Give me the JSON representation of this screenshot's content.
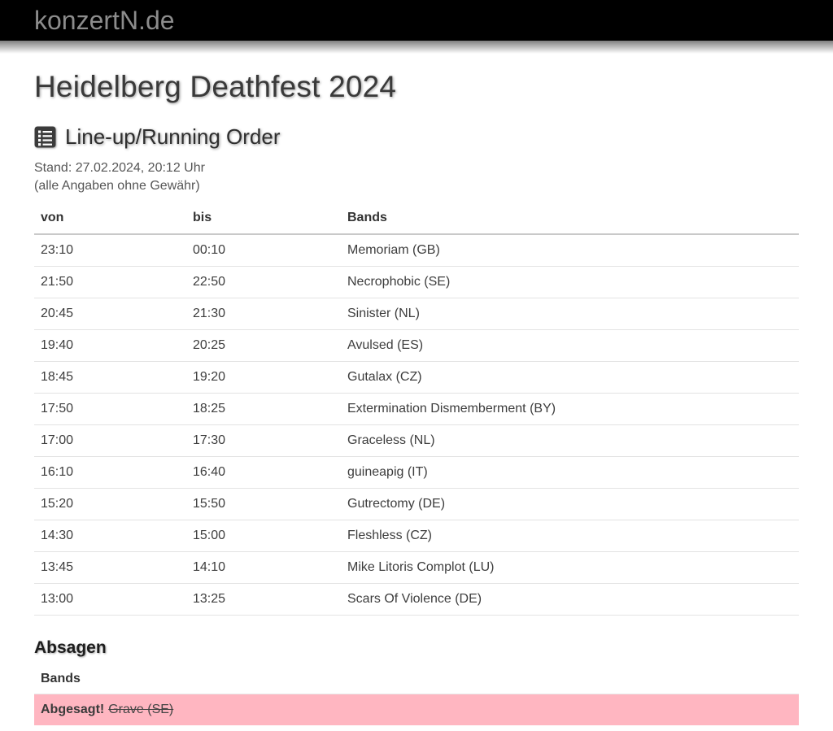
{
  "topbar": {
    "site_title": "konzertN.de"
  },
  "page": {
    "title": "Heidelberg Deathfest 2024"
  },
  "lineup": {
    "heading": "Line-up/Running Order",
    "icon": "list-icon",
    "stand_line": "Stand: 27.02.2024, 20:12 Uhr",
    "disclaimer": "(alle Angaben ohne Gewähr)",
    "columns": {
      "von": "von",
      "bis": "bis",
      "bands": "Bands"
    },
    "rows": [
      {
        "von": "23:10",
        "bis": "00:10",
        "band": "Memoriam (GB)"
      },
      {
        "von": "21:50",
        "bis": "22:50",
        "band": "Necrophobic (SE)"
      },
      {
        "von": "20:45",
        "bis": "21:30",
        "band": "Sinister (NL)"
      },
      {
        "von": "19:40",
        "bis": "20:25",
        "band": "Avulsed (ES)"
      },
      {
        "von": "18:45",
        "bis": "19:20",
        "band": "Gutalax (CZ)"
      },
      {
        "von": "17:50",
        "bis": "18:25",
        "band": "Extermination Dismemberment (BY)"
      },
      {
        "von": "17:00",
        "bis": "17:30",
        "band": "Graceless (NL)"
      },
      {
        "von": "16:10",
        "bis": "16:40",
        "band": "guineapig (IT)"
      },
      {
        "von": "15:20",
        "bis": "15:50",
        "band": "Gutrectomy (DE)"
      },
      {
        "von": "14:30",
        "bis": "15:00",
        "band": "Fleshless (CZ)"
      },
      {
        "von": "13:45",
        "bis": "14:10",
        "band": "Mike Litoris Complot (LU)"
      },
      {
        "von": "13:00",
        "bis": "13:25",
        "band": "Scars Of Violence (DE)"
      }
    ]
  },
  "cancellations": {
    "heading": "Absagen",
    "column_bands": "Bands",
    "rows": [
      {
        "label": "Abgesagt!",
        "band": "Grave (SE)"
      }
    ]
  },
  "colors": {
    "topbar_bg": "#000000",
    "site_title_text": "#8c8c8c",
    "cancel_row_bg": "#ffb6c1",
    "heading_text": "#2f2f2f",
    "body_text": "#3d3d3d"
  }
}
